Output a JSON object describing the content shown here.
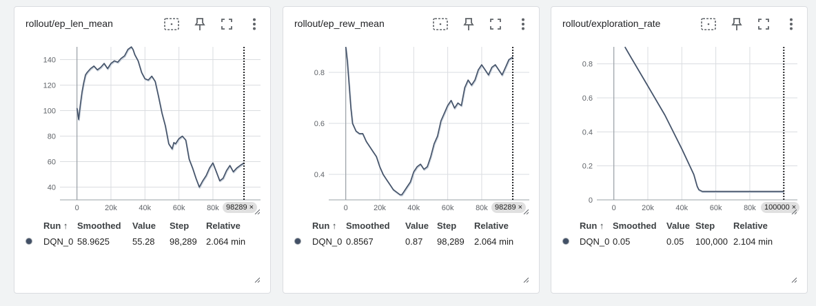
{
  "colors": {
    "series": "#425066",
    "raw": "#c5ced9",
    "grid": "#dadce0",
    "dot": "#425066"
  },
  "table_headers": {
    "run": "Run ↑",
    "smoothed": "Smoothed",
    "value": "Value",
    "step": "Step",
    "relative": "Relative"
  },
  "cards": [
    {
      "title": "rollout/ep_len_mean",
      "step_badge": "98289",
      "row": {
        "run": "DQN_0",
        "smoothed": "58.9625",
        "value": "55.28",
        "step": "98,289",
        "relative": "2.064 min"
      }
    },
    {
      "title": "rollout/ep_rew_mean",
      "step_badge": "98289",
      "row": {
        "run": "DQN_0",
        "smoothed": "0.8567",
        "value": "0.87",
        "step": "98,289",
        "relative": "2.064 min"
      }
    },
    {
      "title": "rollout/exploration_rate",
      "step_badge": "100000",
      "row": {
        "run": "DQN_0",
        "smoothed": "0.05",
        "value": "0.05",
        "step": "100,000",
        "relative": "2.104 min"
      }
    }
  ],
  "chart_data": [
    {
      "type": "line",
      "title": "rollout/ep_len_mean",
      "xlim": [
        -10000,
        108000
      ],
      "ylim": [
        30,
        150
      ],
      "xticks": [
        "0",
        "20k",
        "40k",
        "60k",
        "80k"
      ],
      "xtick_values": [
        0,
        20000,
        40000,
        60000,
        80000
      ],
      "yticks": [
        "40",
        "60",
        "80",
        "100",
        "120",
        "140"
      ],
      "ytick_values": [
        40,
        60,
        80,
        100,
        120,
        140
      ],
      "cursor_x": 98289,
      "series": [
        {
          "name": "DQN_0",
          "x": [
            0,
            1000,
            2000,
            3000,
            4000,
            5000,
            6000,
            8000,
            10000,
            12000,
            14000,
            16000,
            18000,
            20000,
            22000,
            24000,
            26000,
            28000,
            30000,
            32000,
            33000,
            34000,
            36000,
            38000,
            40000,
            42000,
            44000,
            46000,
            48000,
            50000,
            52000,
            54000,
            56000,
            57000,
            58000,
            60000,
            62000,
            64000,
            66000,
            68000,
            70000,
            72000,
            74000,
            76000,
            78000,
            80000,
            82000,
            84000,
            86000,
            88000,
            90000,
            92000,
            94000,
            96000,
            98289
          ],
          "y": [
            102,
            93,
            105,
            115,
            122,
            128,
            130,
            133,
            135,
            132,
            134,
            137,
            133,
            137,
            139,
            138,
            141,
            143,
            148,
            150,
            148,
            144,
            139,
            130,
            125,
            124,
            127,
            123,
            111,
            98,
            88,
            74,
            70,
            75,
            74,
            78,
            80,
            77,
            62,
            55,
            47,
            40,
            45,
            49,
            55,
            59,
            52,
            45,
            47,
            53,
            57,
            52,
            55,
            57,
            59
          ]
        }
      ]
    },
    {
      "type": "line",
      "title": "rollout/ep_rew_mean",
      "xlim": [
        -10000,
        108000
      ],
      "ylim": [
        0.3,
        0.9
      ],
      "xticks": [
        "0",
        "20k",
        "40k",
        "60k",
        "80k"
      ],
      "xtick_values": [
        0,
        20000,
        40000,
        60000,
        80000
      ],
      "yticks": [
        "0.4",
        "0.6",
        "0.8"
      ],
      "ytick_values": [
        0.4,
        0.6,
        0.8
      ],
      "cursor_x": 98289,
      "series": [
        {
          "name": "DQN_0",
          "x": [
            0,
            1000,
            2000,
            3000,
            4000,
            6000,
            8000,
            10000,
            12000,
            14000,
            16000,
            18000,
            20000,
            22000,
            24000,
            26000,
            28000,
            30000,
            32000,
            33000,
            34000,
            36000,
            38000,
            40000,
            42000,
            44000,
            46000,
            48000,
            50000,
            52000,
            54000,
            56000,
            58000,
            60000,
            62000,
            64000,
            66000,
            68000,
            70000,
            72000,
            74000,
            76000,
            78000,
            80000,
            82000,
            84000,
            86000,
            88000,
            90000,
            92000,
            94000,
            96000,
            98289
          ],
          "y": [
            0.9,
            0.84,
            0.75,
            0.66,
            0.6,
            0.57,
            0.56,
            0.56,
            0.53,
            0.51,
            0.49,
            0.47,
            0.43,
            0.4,
            0.38,
            0.36,
            0.34,
            0.33,
            0.32,
            0.32,
            0.33,
            0.35,
            0.37,
            0.41,
            0.43,
            0.44,
            0.42,
            0.43,
            0.47,
            0.52,
            0.55,
            0.61,
            0.64,
            0.67,
            0.69,
            0.66,
            0.68,
            0.67,
            0.74,
            0.77,
            0.75,
            0.77,
            0.81,
            0.83,
            0.81,
            0.79,
            0.82,
            0.83,
            0.81,
            0.79,
            0.82,
            0.85,
            0.86
          ]
        }
      ]
    },
    {
      "type": "line",
      "title": "rollout/exploration_rate",
      "xlim": [
        -10000,
        108000
      ],
      "ylim": [
        0,
        0.9
      ],
      "xticks": [
        "0",
        "20k",
        "40k",
        "60k",
        "80k"
      ],
      "xtick_values": [
        0,
        20000,
        40000,
        60000,
        80000
      ],
      "yticks": [
        "0",
        "0.2",
        "0.4",
        "0.6",
        "0.8"
      ],
      "ytick_values": [
        0,
        0.2,
        0.4,
        0.6,
        0.8
      ],
      "cursor_x": 100000,
      "series": [
        {
          "name": "DQN_0",
          "x": [
            6500,
            10000,
            20000,
            30000,
            40000,
            47000,
            49000,
            50000,
            52000,
            60000,
            70000,
            80000,
            90000,
            100000
          ],
          "y": [
            0.9,
            0.84,
            0.67,
            0.5,
            0.3,
            0.15,
            0.08,
            0.06,
            0.05,
            0.05,
            0.05,
            0.05,
            0.05,
            0.05
          ]
        }
      ]
    }
  ]
}
